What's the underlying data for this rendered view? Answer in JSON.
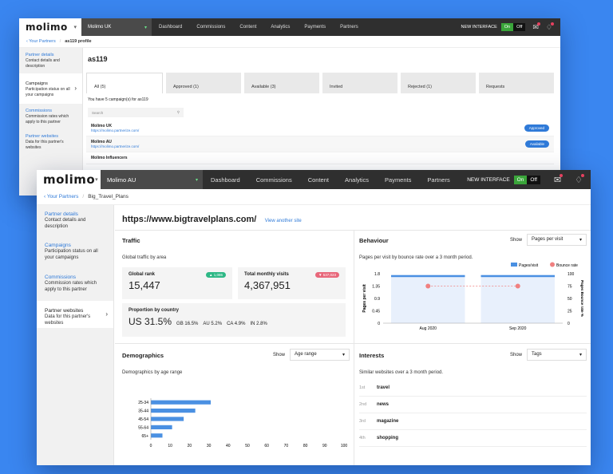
{
  "back": {
    "logo": "molimo",
    "account": "Molimo UK",
    "nav": [
      "Dashboard",
      "Commissions",
      "Content",
      "Analytics",
      "Payments",
      "Partners"
    ],
    "new_interface": "NEW INTERFACE",
    "toggle_on": "On",
    "toggle_off": "Off",
    "crumb_link": "Your Partners",
    "crumb_current": "as119 profile",
    "side": [
      {
        "title": "Partner details",
        "desc": "Contact details and description"
      },
      {
        "title": "Campaigns",
        "desc": "Participation status on all your campaigns"
      },
      {
        "title": "Commissions",
        "desc": "Commission rates which apply to this partner"
      },
      {
        "title": "Partner websites",
        "desc": "Data for this partner's websites"
      }
    ],
    "page_title": "as119",
    "tabs": [
      "All (5)",
      "Approved (1)",
      "Available (3)",
      "Invited",
      "Rejected (1)",
      "Requests"
    ],
    "count_text": "You have 5 campaign(s) for as119",
    "search_placeholder": "Search",
    "rows": [
      {
        "name": "Molimo UK",
        "url": "https://molimo.partnerize.com/",
        "status": "Approved"
      },
      {
        "name": "Molimo AU",
        "url": "https://molimo.partnerize.com/",
        "status": "Available"
      },
      {
        "name": "Molimo Influencers",
        "url": "",
        "status": ""
      }
    ]
  },
  "front": {
    "logo": "molimo",
    "account": "Molimo AU",
    "nav": [
      "Dashboard",
      "Commissions",
      "Content",
      "Analytics",
      "Payments",
      "Partners"
    ],
    "new_interface": "NEW INTERFACE",
    "toggle_on": "On",
    "toggle_off": "Off",
    "crumb_link": "Your Partners",
    "crumb_current": "Big_Travel_Plans",
    "side": [
      {
        "title": "Partner details",
        "desc": "Contact details and description"
      },
      {
        "title": "Campaigns",
        "desc": "Participation status on all your campaigns"
      },
      {
        "title": "Commissions",
        "desc": "Commission rates which apply to this partner"
      },
      {
        "title": "Partner websites",
        "desc": "Data for this partner's websites"
      }
    ],
    "site_url": "https://www.bigtravelplans.com/",
    "view_another": "View another site",
    "traffic": {
      "title": "Traffic",
      "subtitle": "Global traffic by area",
      "global_rank_label": "Global rank",
      "global_rank": "15,447",
      "global_rank_badge": "1,086",
      "visits_label": "Total monthly visits",
      "visits": "4,367,951",
      "visits_badge": "537,023",
      "proportion_label": "Proportion by country",
      "top_country": "US 31.5%",
      "others": [
        "GB 16.5%",
        "AU 5.2%",
        "CA 4.9%",
        "IN 2.8%"
      ]
    },
    "behaviour": {
      "title": "Behaviour",
      "show": "Show",
      "select": "Pages per visit",
      "subtitle": "Pages per visit by bounce rate over a 3 month period."
    },
    "demographics": {
      "title": "Demographics",
      "show": "Show",
      "select": "Age range",
      "subtitle": "Demographics by age range"
    },
    "interests": {
      "title": "Interests",
      "show": "Show",
      "select": "Tags",
      "subtitle": "Similar websites over a 3 month period.",
      "items": [
        {
          "rank": "1st",
          "name": "travel"
        },
        {
          "rank": "2nd",
          "name": "news"
        },
        {
          "rank": "3rd",
          "name": "magazine"
        },
        {
          "rank": "4th",
          "name": "shopping"
        }
      ]
    }
  },
  "chart_data": [
    {
      "type": "bar",
      "categories": [
        "Aug 2020",
        "Sep 2020"
      ],
      "series": [
        {
          "name": "Pages/visit",
          "values": [
            1.75,
            1.75
          ]
        },
        {
          "name": "Bounce rate",
          "values": [
            75,
            75
          ]
        }
      ],
      "ylabel": "Pages per visit",
      "y2label": "Pages Bounce rate %",
      "ylim": [
        0,
        1.8
      ],
      "y2lim": [
        0,
        100
      ],
      "yticks": [
        "1.8",
        "1.35",
        "0.9",
        "0.45",
        "0"
      ],
      "y2ticks": [
        "100",
        "75",
        "50",
        "25",
        "0"
      ],
      "legend": "top-right"
    },
    {
      "type": "bar",
      "orientation": "horizontal",
      "categories": [
        "25-34",
        "35-44",
        "45-54",
        "55-64",
        "65+"
      ],
      "values": [
        31,
        23,
        17,
        11,
        6
      ],
      "xlim": [
        0,
        100
      ],
      "xticks": [
        "0",
        "10",
        "20",
        "30",
        "40",
        "50",
        "60",
        "70",
        "80",
        "90",
        "100"
      ]
    }
  ],
  "colors": {
    "background": "#3a86f0",
    "accent": "#2f7ad8",
    "bar": "#4a90e2",
    "bounce": "#f08080",
    "on": "#3aa53a"
  }
}
